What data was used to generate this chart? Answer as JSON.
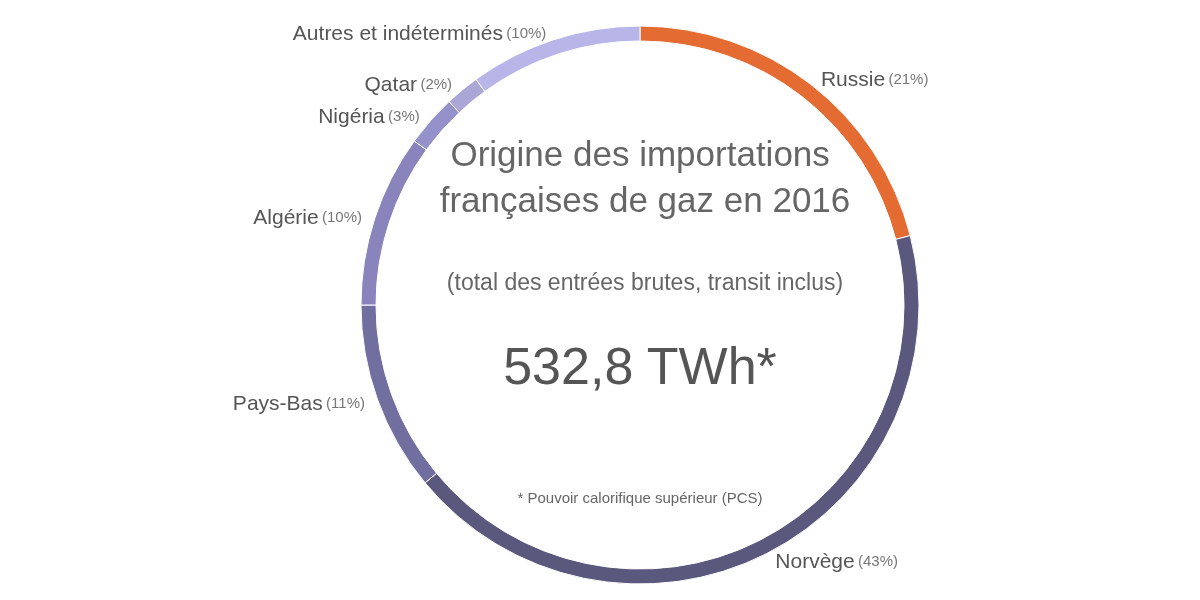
{
  "chart_data": {
    "type": "donut",
    "title": "Origine des importations françaises de gaz en 2016",
    "subtitle": "(total des entrées brutes, transit inclus)",
    "annotations": [
      "532,8 TWh*",
      "* Pouvoir calorifique supérieur (PCS)"
    ],
    "categories": [
      "Russie",
      "Norvège",
      "Pays-Bas",
      "Algérie",
      "Nigéria",
      "Qatar",
      "Autres et indéterminés"
    ],
    "values": [
      21,
      43,
      11,
      10,
      3,
      2,
      10
    ],
    "value_labels": [
      "(21%)",
      "(43%)",
      "(11%)",
      "(10%)",
      "(3%)",
      "(2%)",
      "(10%)"
    ],
    "colors": [
      "#e46c32",
      "#5b587e",
      "#716f9f",
      "#8984bc",
      "#9591cb",
      "#aaa6d6",
      "#b8b6e8"
    ],
    "legend": false
  }
}
